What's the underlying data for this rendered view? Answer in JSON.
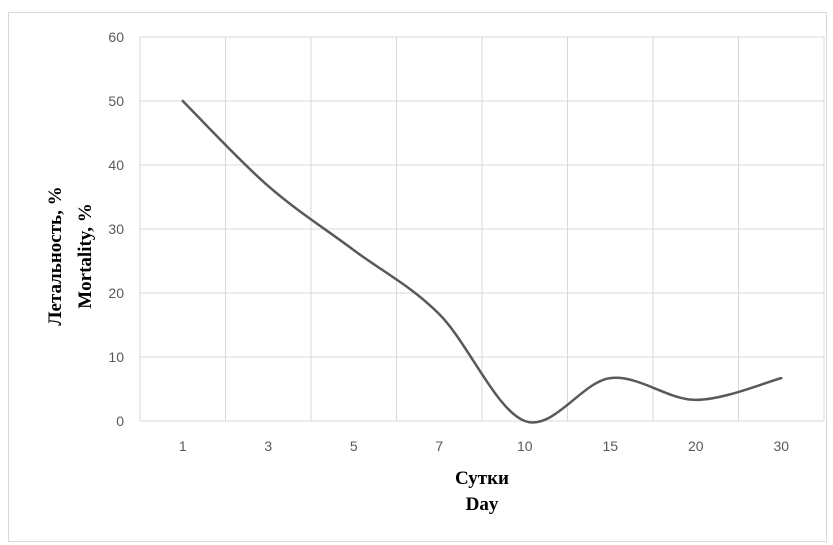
{
  "chart_data": {
    "type": "line",
    "categories": [
      "1",
      "3",
      "5",
      "7",
      "10",
      "15",
      "20",
      "30"
    ],
    "series": [
      {
        "values": [
          50,
          36.7,
          26.7,
          16.7,
          0,
          6.7,
          3.3,
          6.7
        ]
      }
    ],
    "ylim": [
      0,
      60
    ],
    "yticks": [
      "0",
      "10",
      "20",
      "30",
      "40",
      "50",
      "60"
    ],
    "xlabel_lines": [
      "Сутки",
      "Day"
    ],
    "ylabel_lines": [
      "Летальность,  %",
      "Mortality,  %"
    ],
    "grid": true,
    "colors": {
      "line": "#595959",
      "grid": "#d9d9d9",
      "tick_text": "#595959"
    }
  }
}
